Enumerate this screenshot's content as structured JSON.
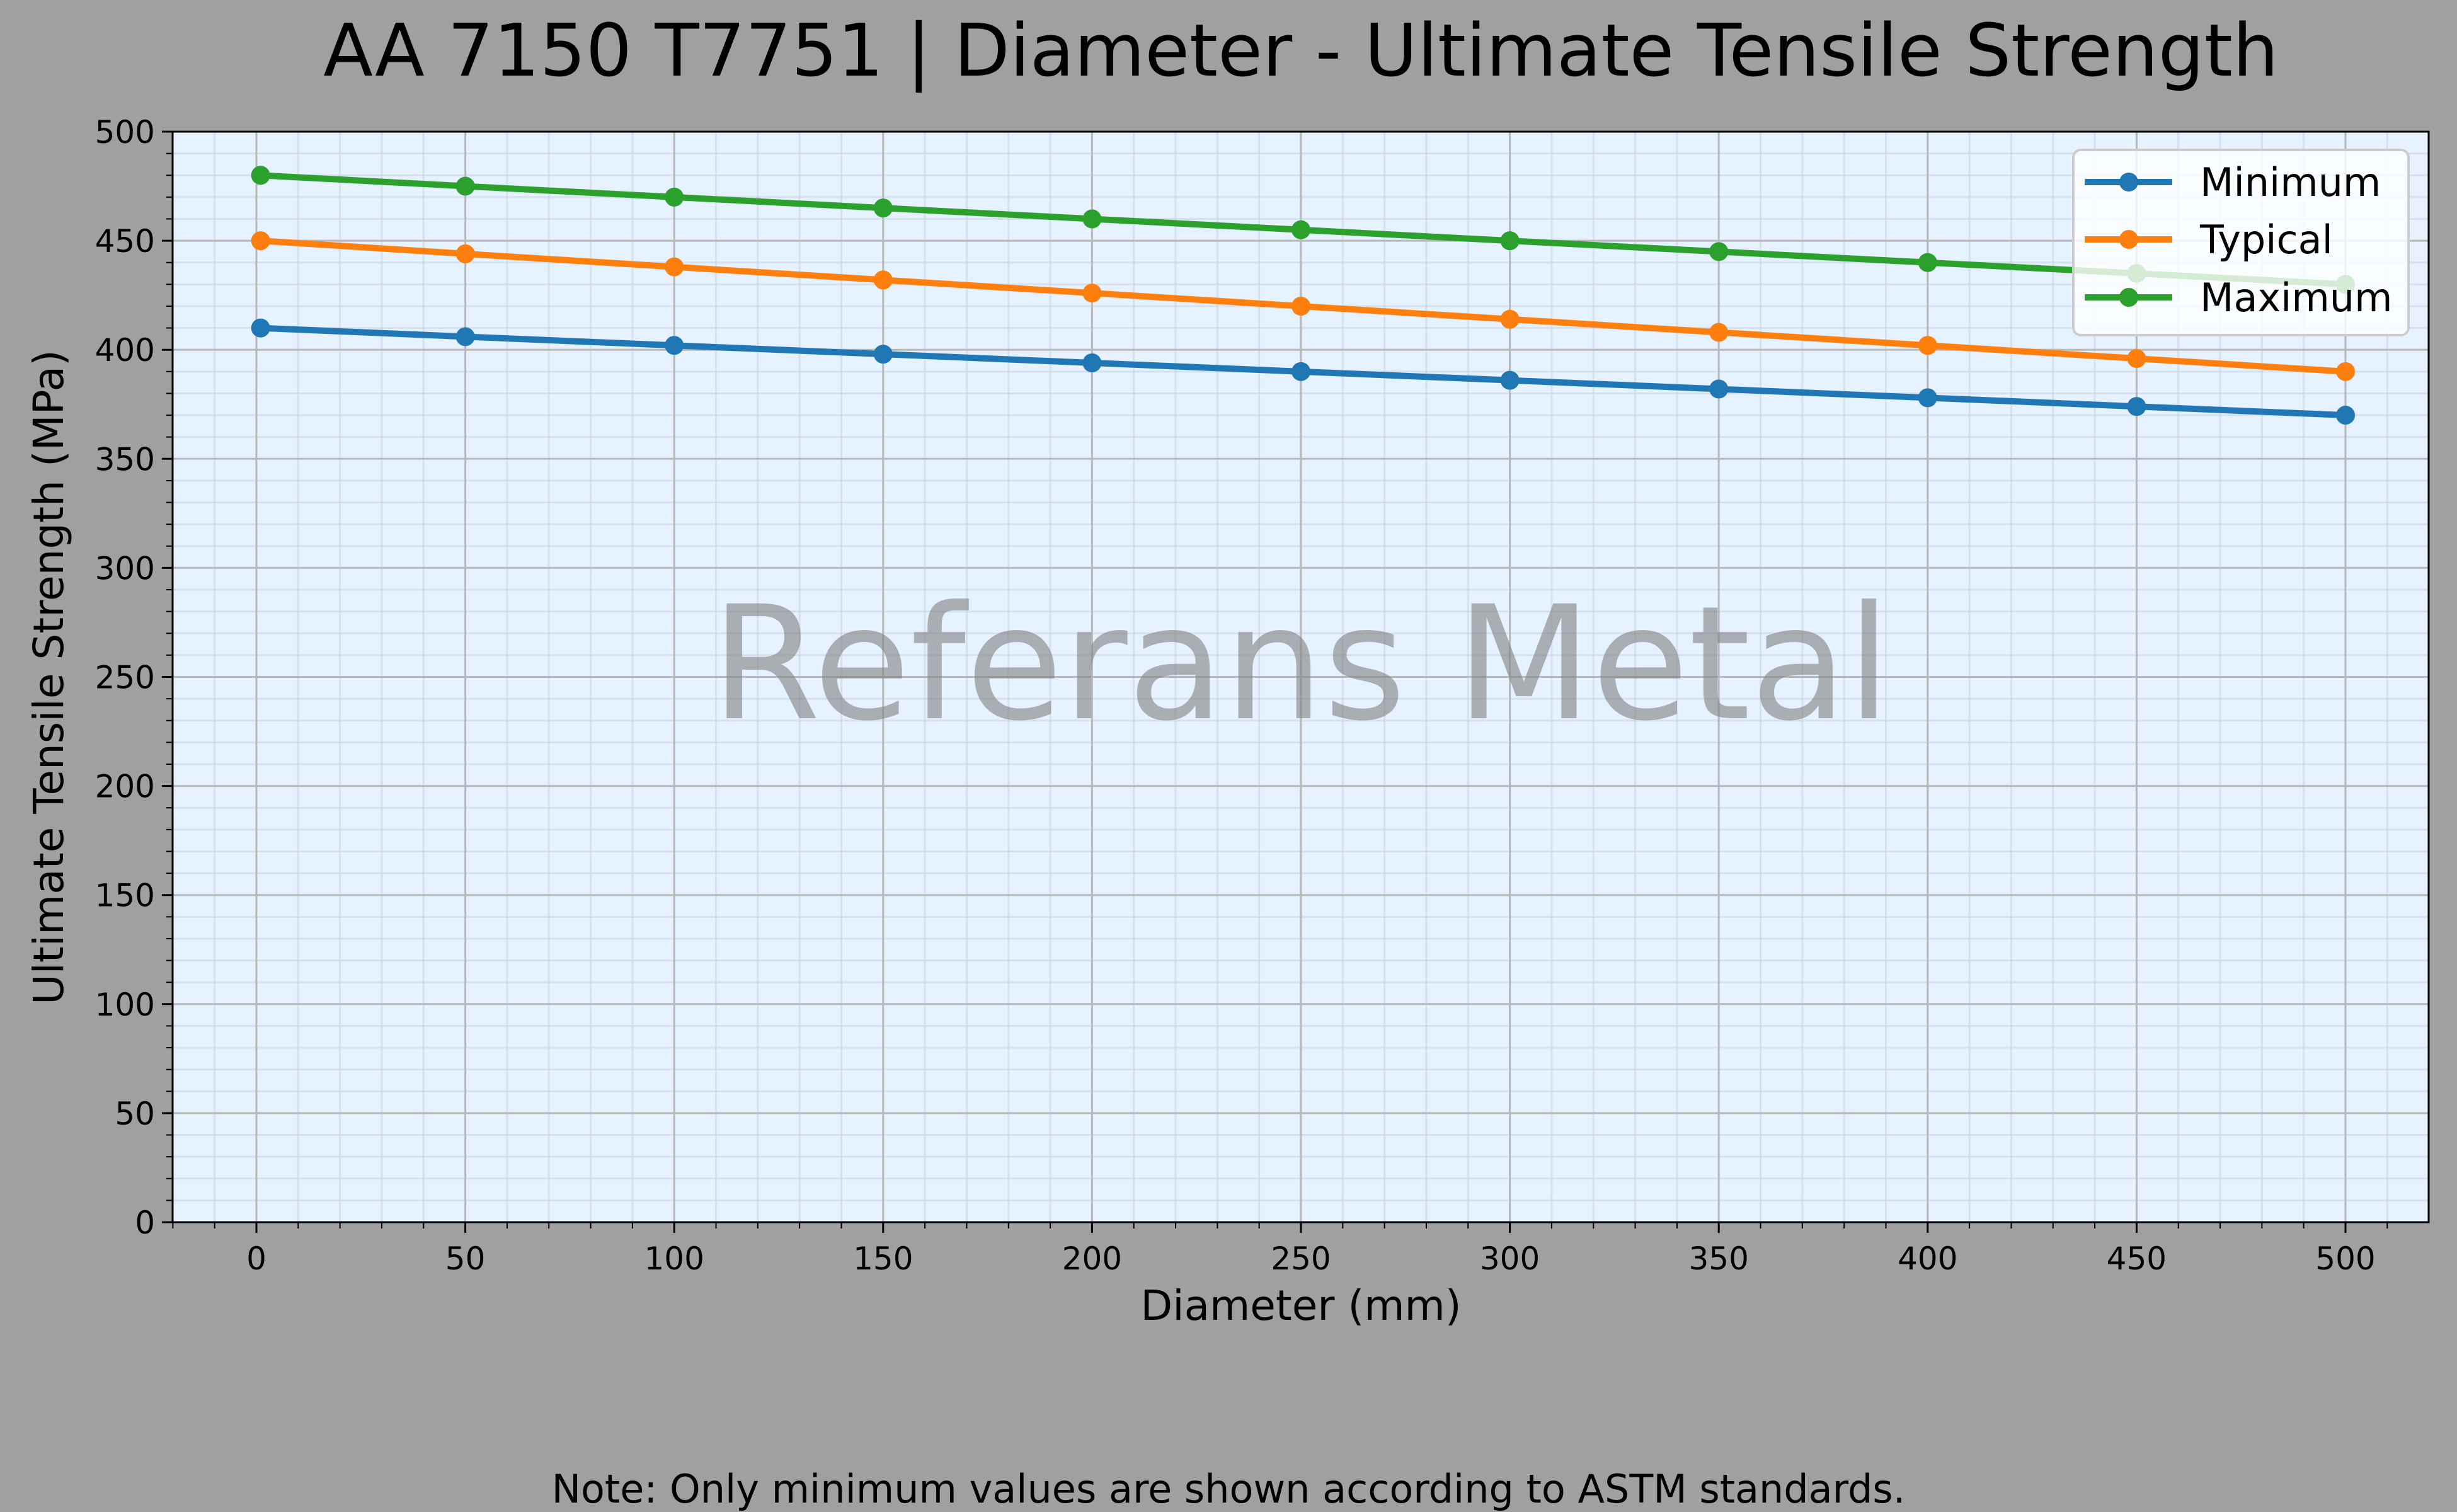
{
  "chart_data": {
    "type": "line",
    "title": "AA 7150 T7751 | Diameter - Ultimate Tensile Strength",
    "xlabel": "Diameter (mm)",
    "ylabel": "Ultimate Tensile Strength (MPa)",
    "xlim": [
      -25,
      526
    ],
    "ylim": [
      0,
      500
    ],
    "x_ticks": [
      "0",
      "50",
      "100",
      "150",
      "200",
      "250",
      "300",
      "350",
      "400",
      "450",
      "500"
    ],
    "y_ticks": [
      "0",
      "50",
      "100",
      "150",
      "200",
      "250",
      "300",
      "350",
      "400",
      "450",
      "500"
    ],
    "grid": true,
    "minor_grid": true,
    "legend_placement": "top-right",
    "x": [
      1,
      50,
      100,
      150,
      200,
      250,
      300,
      350,
      400,
      450,
      500
    ],
    "series": [
      {
        "name": "Minimum",
        "color": "#1f77b4",
        "values": [
          410,
          406,
          402,
          398,
          394,
          390,
          386,
          382,
          378,
          374,
          370
        ]
      },
      {
        "name": "Typical",
        "color": "#ff7f0e",
        "values": [
          450,
          444,
          438,
          432,
          426,
          420,
          414,
          408,
          402,
          396,
          390
        ]
      },
      {
        "name": "Maximum",
        "color": "#2ca02c",
        "values": [
          480,
          475,
          470,
          465,
          460,
          455,
          450,
          445,
          440,
          435,
          430
        ]
      }
    ],
    "watermark": "Referans Metal",
    "note": "Note: Only minimum values are shown according to ASTM standards."
  },
  "colors": {
    "figure_bg": "#a0a0a0",
    "plot_bg": "#e6f2ff"
  }
}
